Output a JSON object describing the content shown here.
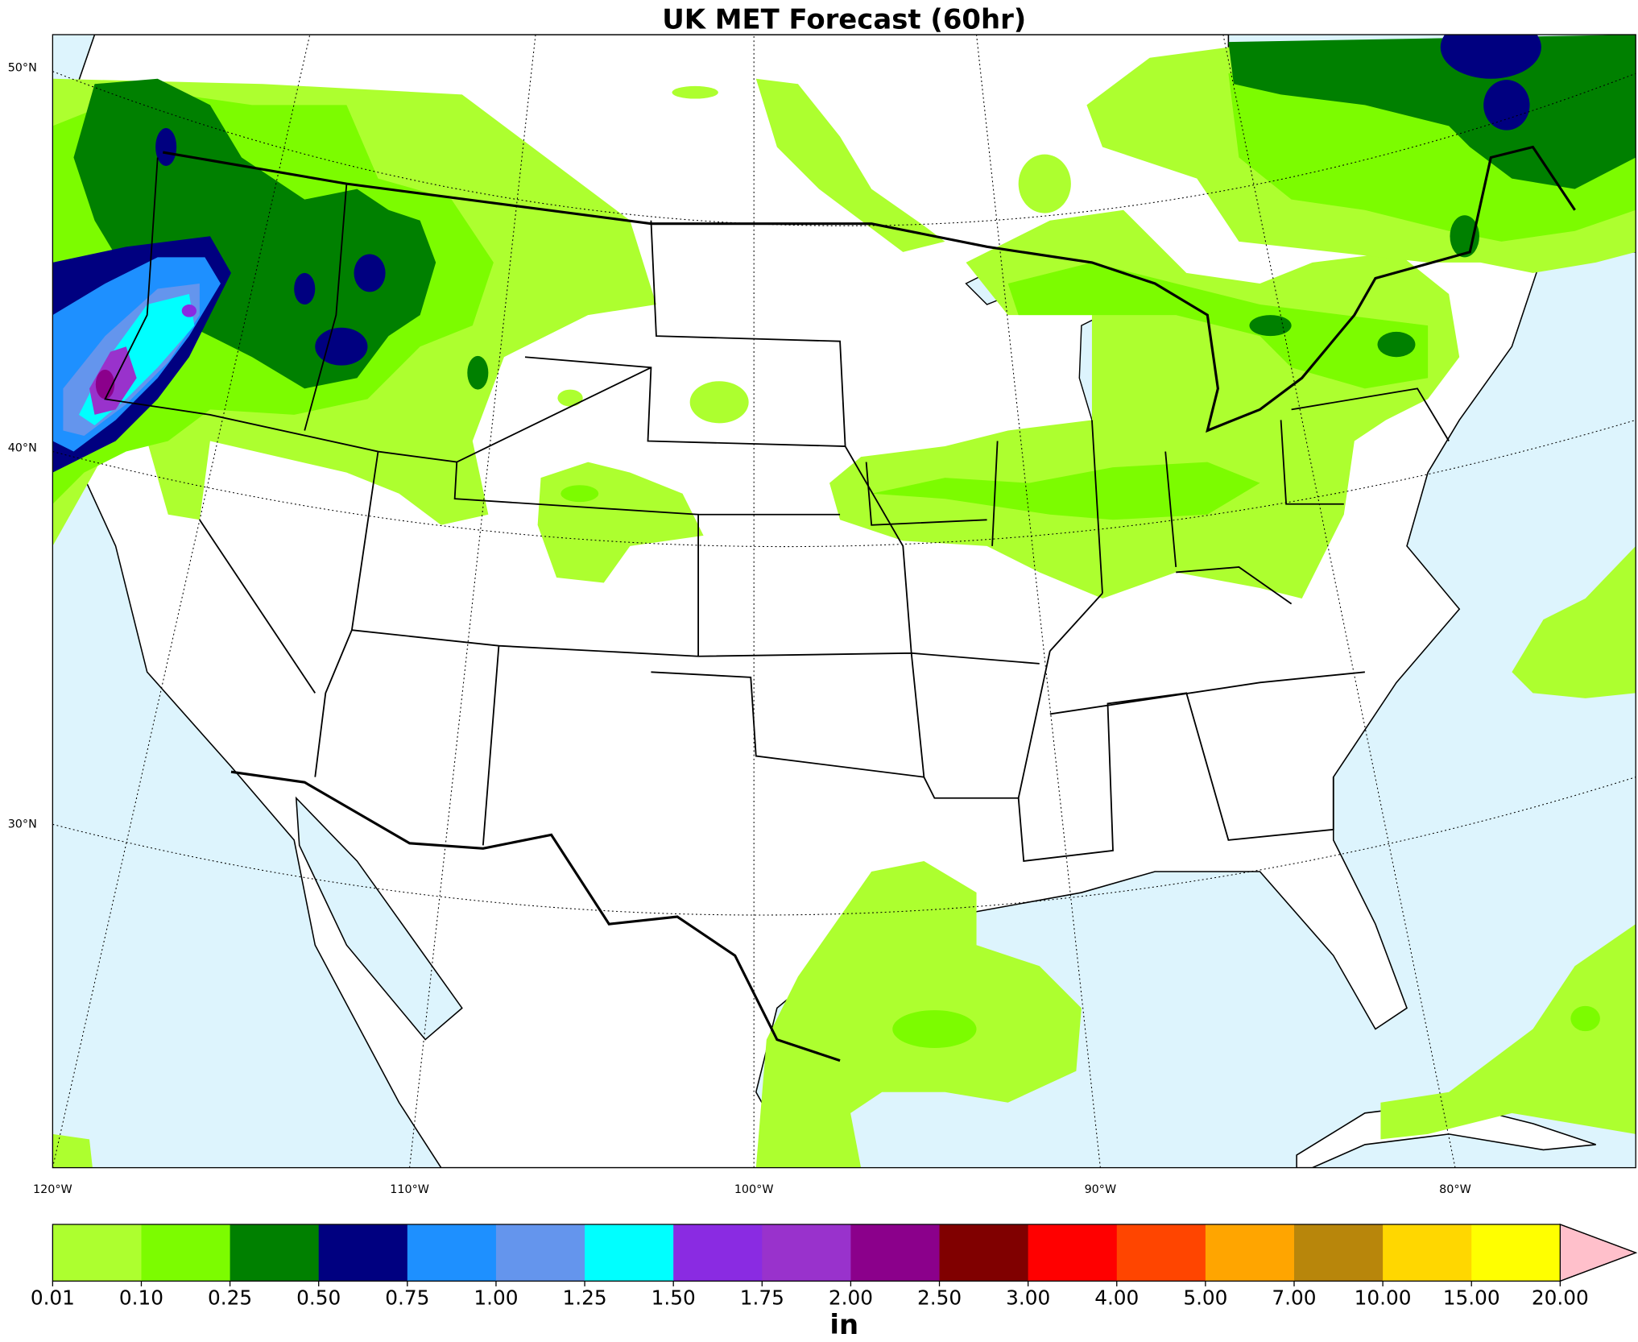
{
  "title": "UK MET Forecast (60hr)",
  "map": {
    "lat_labels": [
      "50°N",
      "40°N",
      "30°N"
    ],
    "lon_labels": [
      "120°W",
      "110°W",
      "100°W",
      "90°W",
      "80°W"
    ]
  },
  "colorbar": {
    "label": "in",
    "levels": [
      0.01,
      {
        "value": 0.1,
        "label": "0.10"
      },
      0.25,
      {
        "value": 0.5,
        "label": "0.50"
      },
      0.75,
      {
        "value": 1,
        "label": "1.00"
      },
      1.25,
      {
        "value": 1.5,
        "label": "1.50"
      },
      1.75,
      {
        "value": 2,
        "label": "2.00"
      },
      {
        "value": 2.5,
        "label": "2.50"
      },
      {
        "value": 3,
        "label": "3.00"
      },
      {
        "value": 4,
        "label": "4.00"
      },
      {
        "value": 5,
        "label": "5.00"
      },
      {
        "value": 7,
        "label": "7.00"
      },
      {
        "value": 10,
        "label": "10.00"
      },
      {
        "value": 15,
        "label": "15.00"
      },
      {
        "value": 20,
        "label": "20.00"
      }
    ],
    "colors": [
      "#adff2f",
      "#7cfc00",
      "#008000",
      "#000080",
      "#1e90ff",
      "#6495ed",
      "#00ffff",
      "#8a2be2",
      "#9932cc",
      "#8b008b",
      "#800000",
      "#ff0000",
      "#ff4500",
      "#ffa500",
      "#b8860b",
      "#ffd700",
      "#ffff00"
    ],
    "extend_color": "#ffc0cb"
  }
}
